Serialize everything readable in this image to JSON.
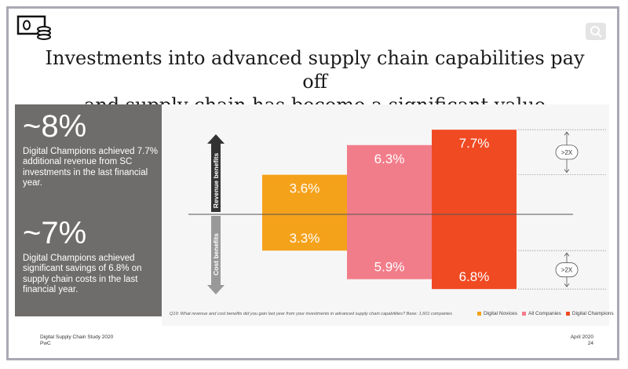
{
  "slide": {
    "title_line1": "Investments into advanced supply chain capabilities pay off",
    "title_line2": "and supply chain has become a significant value contributor"
  },
  "sidebar": {
    "stat1": {
      "value": "~8%",
      "text": "Digital Champions achieved 7.7% additional revenue from SC investments in the last financial year."
    },
    "stat2": {
      "value": "~7%",
      "text": "Digital Champions achieved significant savings of 6.8% on supply chain costs in the last financial year."
    }
  },
  "chart_data": {
    "type": "bar",
    "title": "",
    "categories": [
      "Digital Novices",
      "All Companies",
      "Digital Champions"
    ],
    "series": [
      {
        "name": "Revenue benefits",
        "values": [
          3.6,
          6.3,
          7.7
        ],
        "labels": [
          "3.6%",
          "6.3%",
          "7.7%"
        ]
      },
      {
        "name": "Cost benefits",
        "values": [
          3.3,
          5.9,
          6.8
        ],
        "labels": [
          "3.3%",
          "5.9%",
          "6.8%"
        ]
      }
    ],
    "colors": [
      "#f5a21b",
      "#f27d8a",
      "#f04a23"
    ],
    "axis_labels": {
      "up": "Revenue benefits",
      "down": "Cost benefits"
    },
    "annotations": [
      ">2X",
      ">2X"
    ],
    "legend": [
      "Digital Novices",
      "All Companies",
      "Digital Champions"
    ]
  },
  "footnote": "Q19: What revenue and cost benefits did you gain last year from your investments in advanced supply chain capabilities? Base: 1,601 companies",
  "footer": {
    "study": "Digital Supply Chain Study 2020",
    "company": "PwC",
    "date": "April 2020",
    "page": "24"
  }
}
